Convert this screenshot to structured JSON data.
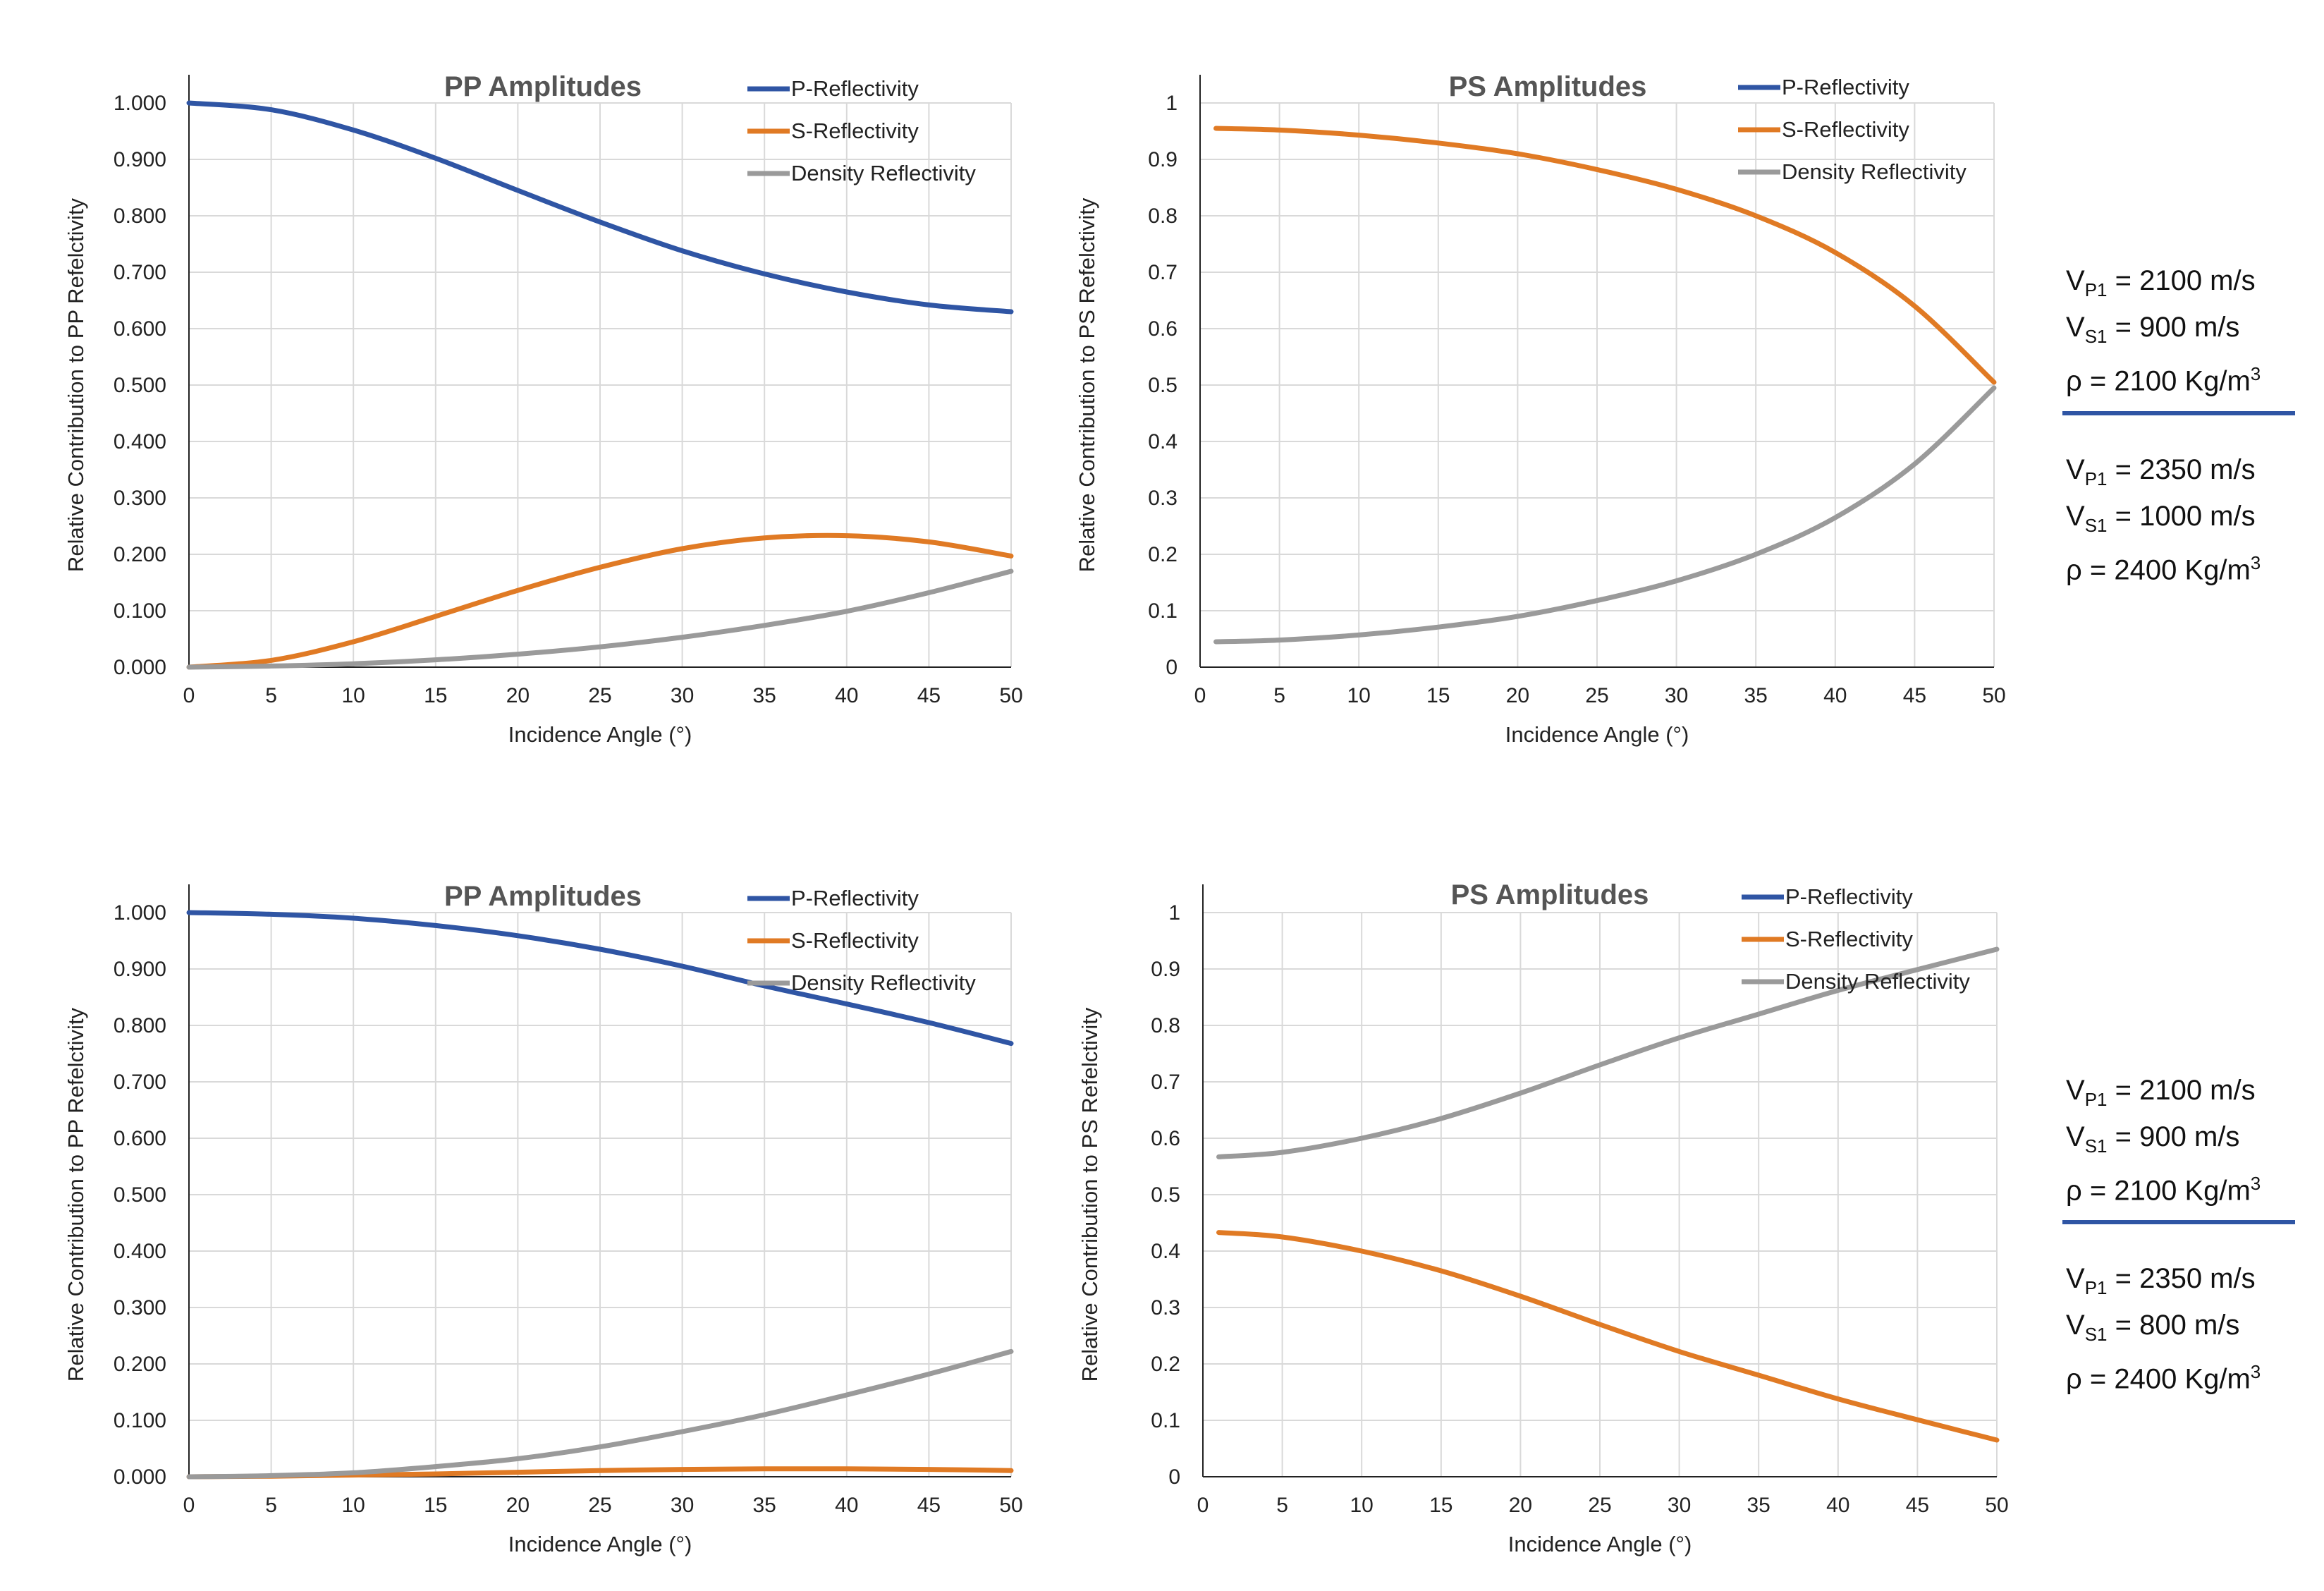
{
  "colors": {
    "p": "#2f55a4",
    "s": "#e07a24",
    "density": "#9a9a9a"
  },
  "chart_data": [
    {
      "type": "line",
      "title": "PP Amplitudes",
      "xlabel": "Incidence Angle (°)",
      "ylabel": "Relative Contribution to PP Refelctivity",
      "xlim": [
        0,
        50
      ],
      "ylim": [
        0,
        1
      ],
      "xticks": [
        "0",
        "5",
        "10",
        "15",
        "20",
        "25",
        "30",
        "35",
        "40",
        "45",
        "50"
      ],
      "yticks": [
        "0.000",
        "0.100",
        "0.200",
        "0.300",
        "0.400",
        "0.500",
        "0.600",
        "0.700",
        "0.800",
        "0.900",
        "1.000"
      ],
      "grid": true,
      "legend": "top-right",
      "x": [
        0,
        5,
        10,
        15,
        20,
        25,
        30,
        35,
        40,
        45,
        50
      ],
      "series": [
        {
          "name": "P-Reflectivity",
          "color": "p",
          "values": [
            1.0,
            0.988,
            0.952,
            0.902,
            0.845,
            0.789,
            0.738,
            0.697,
            0.665,
            0.642,
            0.63
          ]
        },
        {
          "name": "S-Reflectivity",
          "color": "s",
          "values": [
            0.0,
            0.012,
            0.045,
            0.09,
            0.136,
            0.177,
            0.21,
            0.229,
            0.233,
            0.222,
            0.197
          ]
        },
        {
          "name": "Density Reflectivity",
          "color": "density",
          "values": [
            0.0,
            0.002,
            0.006,
            0.013,
            0.023,
            0.036,
            0.053,
            0.074,
            0.099,
            0.132,
            0.17
          ]
        }
      ]
    },
    {
      "type": "line",
      "title": "PS Amplitudes",
      "xlabel": "Incidence Angle (°)",
      "ylabel": "Relative Contribution to PS Refelctivity",
      "xlim": [
        0,
        50
      ],
      "ylim": [
        0,
        1
      ],
      "xticks": [
        "0",
        "5",
        "10",
        "15",
        "20",
        "25",
        "30",
        "35",
        "40",
        "45",
        "50"
      ],
      "yticks": [
        "0",
        "0.1",
        "0.2",
        "0.3",
        "0.4",
        "0.5",
        "0.6",
        "0.7",
        "0.8",
        "0.9",
        "1"
      ],
      "grid": true,
      "legend": "top-right",
      "x": [
        1,
        5,
        10,
        15,
        20,
        25,
        30,
        35,
        40,
        45,
        50
      ],
      "series": [
        {
          "name": "P-Reflectivity",
          "color": "p",
          "values": [
            null,
            null,
            null,
            null,
            null,
            null,
            null,
            null,
            null,
            null,
            null
          ]
        },
        {
          "name": "S-Reflectivity",
          "color": "s",
          "values": [
            0.955,
            0.952,
            0.943,
            0.929,
            0.91,
            0.882,
            0.847,
            0.8,
            0.735,
            0.64,
            0.505
          ]
        },
        {
          "name": "Density Reflectivity",
          "color": "density",
          "values": [
            0.045,
            0.048,
            0.057,
            0.071,
            0.09,
            0.118,
            0.153,
            0.2,
            0.265,
            0.36,
            0.495
          ]
        }
      ]
    },
    {
      "type": "line",
      "title": "PP Amplitudes",
      "xlabel": "Incidence Angle (°)",
      "ylabel": "Relative Contribution to PP Refelctivity",
      "xlim": [
        0,
        50
      ],
      "ylim": [
        0,
        1
      ],
      "xticks": [
        "0",
        "5",
        "10",
        "15",
        "20",
        "25",
        "30",
        "35",
        "40",
        "45",
        "50"
      ],
      "yticks": [
        "0.000",
        "0.100",
        "0.200",
        "0.300",
        "0.400",
        "0.500",
        "0.600",
        "0.700",
        "0.800",
        "0.900",
        "1.000"
      ],
      "grid": true,
      "legend": "top-right",
      "x": [
        0,
        5,
        10,
        15,
        20,
        25,
        30,
        35,
        40,
        45,
        50
      ],
      "series": [
        {
          "name": "P-Reflectivity",
          "color": "p",
          "values": [
            1.0,
            0.997,
            0.99,
            0.977,
            0.959,
            0.935,
            0.905,
            0.87,
            0.838,
            0.805,
            0.768
          ]
        },
        {
          "name": "S-Reflectivity",
          "color": "s",
          "values": [
            0.0,
            0.001,
            0.003,
            0.005,
            0.008,
            0.011,
            0.013,
            0.014,
            0.014,
            0.013,
            0.011
          ]
        },
        {
          "name": "Density Reflectivity",
          "color": "density",
          "values": [
            0.0,
            0.002,
            0.007,
            0.018,
            0.032,
            0.053,
            0.08,
            0.11,
            0.145,
            0.182,
            0.222
          ]
        }
      ]
    },
    {
      "type": "line",
      "title": "PS Amplitudes",
      "xlabel": "Incidence Angle (°)",
      "ylabel": "Relative Contribution to PS Refelctivity",
      "xlim": [
        0,
        50
      ],
      "ylim": [
        0,
        1
      ],
      "xticks": [
        "0",
        "5",
        "10",
        "15",
        "20",
        "25",
        "30",
        "35",
        "40",
        "45",
        "50"
      ],
      "yticks": [
        "0",
        "0.1",
        "0.2",
        "0.3",
        "0.4",
        "0.5",
        "0.6",
        "0.7",
        "0.8",
        "0.9",
        "1"
      ],
      "grid": true,
      "legend": "top-right",
      "x": [
        1,
        5,
        10,
        15,
        20,
        25,
        30,
        35,
        40,
        45,
        50
      ],
      "series": [
        {
          "name": "P-Reflectivity",
          "color": "p",
          "values": [
            null,
            null,
            null,
            null,
            null,
            null,
            null,
            null,
            null,
            null,
            null
          ]
        },
        {
          "name": "S-Reflectivity",
          "color": "s",
          "values": [
            0.433,
            0.425,
            0.4,
            0.365,
            0.32,
            0.27,
            0.222,
            0.18,
            0.138,
            0.101,
            0.065
          ]
        },
        {
          "name": "Density Reflectivity",
          "color": "density",
          "values": [
            0.567,
            0.575,
            0.6,
            0.635,
            0.68,
            0.73,
            0.778,
            0.82,
            0.862,
            0.899,
            0.935
          ]
        }
      ]
    }
  ],
  "layers": [
    {
      "upper": {
        "vp_sym": "V",
        "vp_sub": "P1",
        "vp_val": " = 2100 m/s",
        "vs_sym": "V",
        "vs_sub": "S1",
        "vs_val": " = 900 m/s",
        "rho": "ρ = 2100 Kg/m",
        "rho_sup": "3"
      },
      "lower": {
        "vp_sym": "V",
        "vp_sub": "P1",
        "vp_val": " = 2350 m/s",
        "vs_sym": "V",
        "vs_sub": "S1",
        "vs_val": " = 1000 m/s",
        "rho": "ρ = 2400 Kg/m",
        "rho_sup": "3"
      }
    },
    {
      "upper": {
        "vp_sym": "V",
        "vp_sub": "P1",
        "vp_val": " = 2100 m/s",
        "vs_sym": "V",
        "vs_sub": "S1",
        "vs_val": " = 900 m/s",
        "rho": "ρ = 2100 Kg/m",
        "rho_sup": "3"
      },
      "lower": {
        "vp_sym": "V",
        "vp_sub": "P1",
        "vp_val": " = 2350 m/s",
        "vs_sym": "V",
        "vs_sub": "S1",
        "vs_val": " = 800 m/s",
        "rho": "ρ = 2400 Kg/m",
        "rho_sup": "3"
      }
    }
  ]
}
